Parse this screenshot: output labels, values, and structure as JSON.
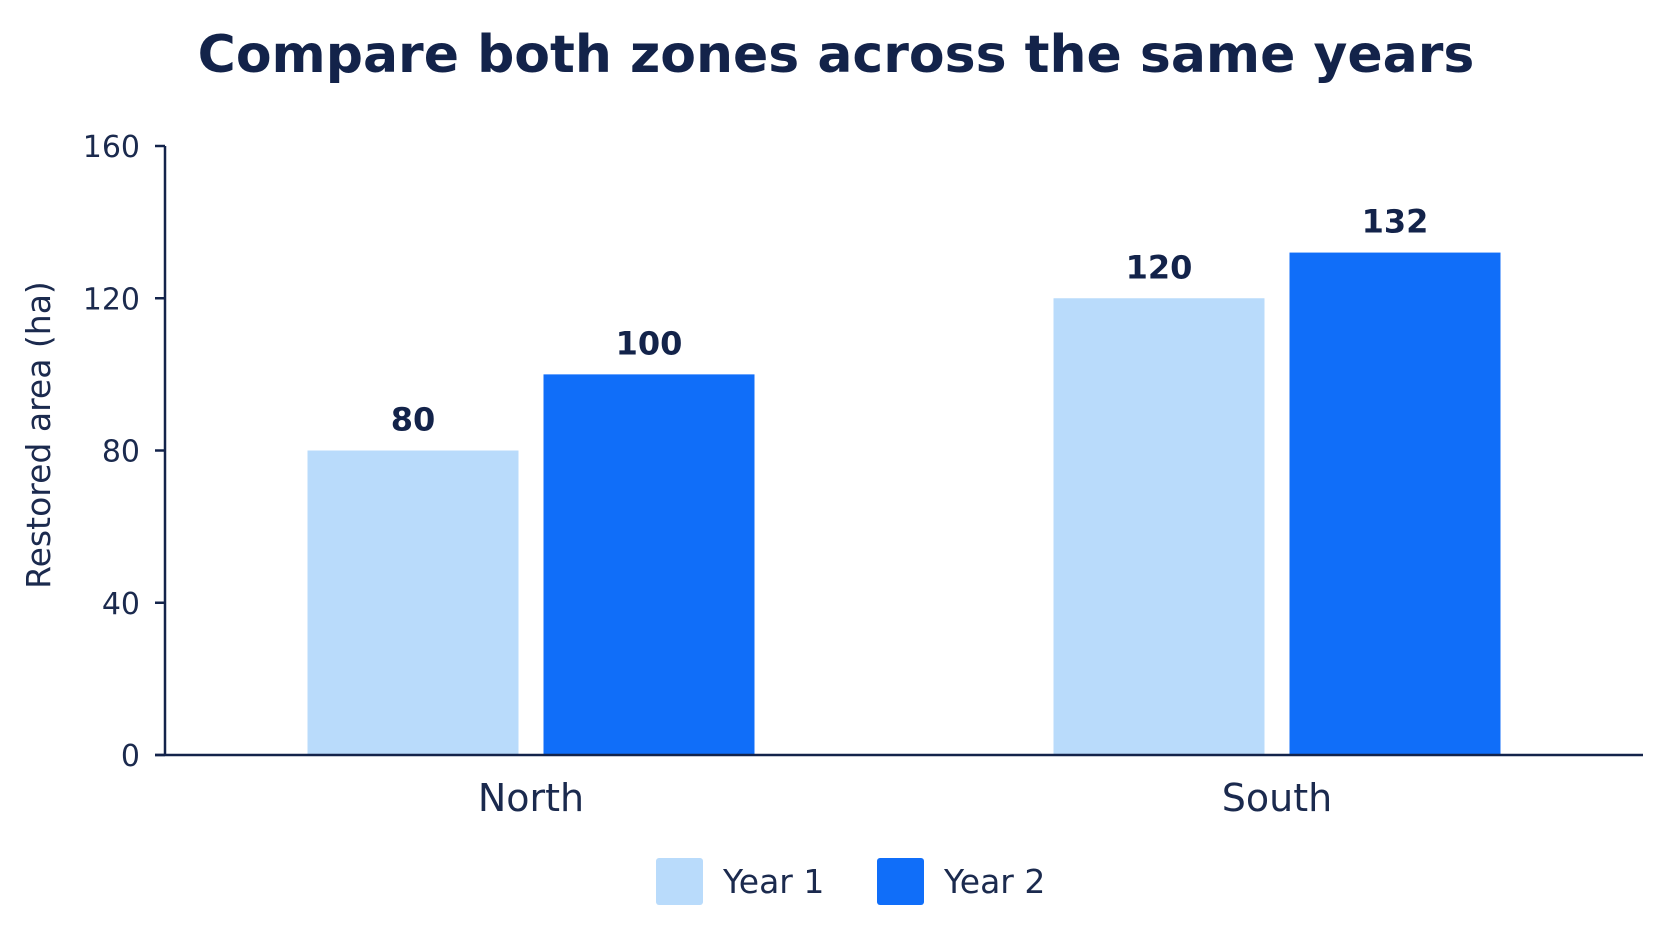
{
  "chart_data": {
    "type": "bar",
    "title": "Compare both zones across the same years",
    "xlabel": "",
    "ylabel": "Restored area (ha)",
    "categories": [
      "North",
      "South"
    ],
    "series": [
      {
        "name": "Year 1",
        "values": [
          80,
          120
        ],
        "color": "#b9dbfb"
      },
      {
        "name": "Year 2",
        "values": [
          100,
          132
        ],
        "color": "#106ef9"
      }
    ],
    "ylim": [
      0,
      160
    ],
    "yticks": [
      0,
      40,
      80,
      120,
      160
    ],
    "grid": false,
    "data_labels": true,
    "legend_position": "bottom-center"
  }
}
